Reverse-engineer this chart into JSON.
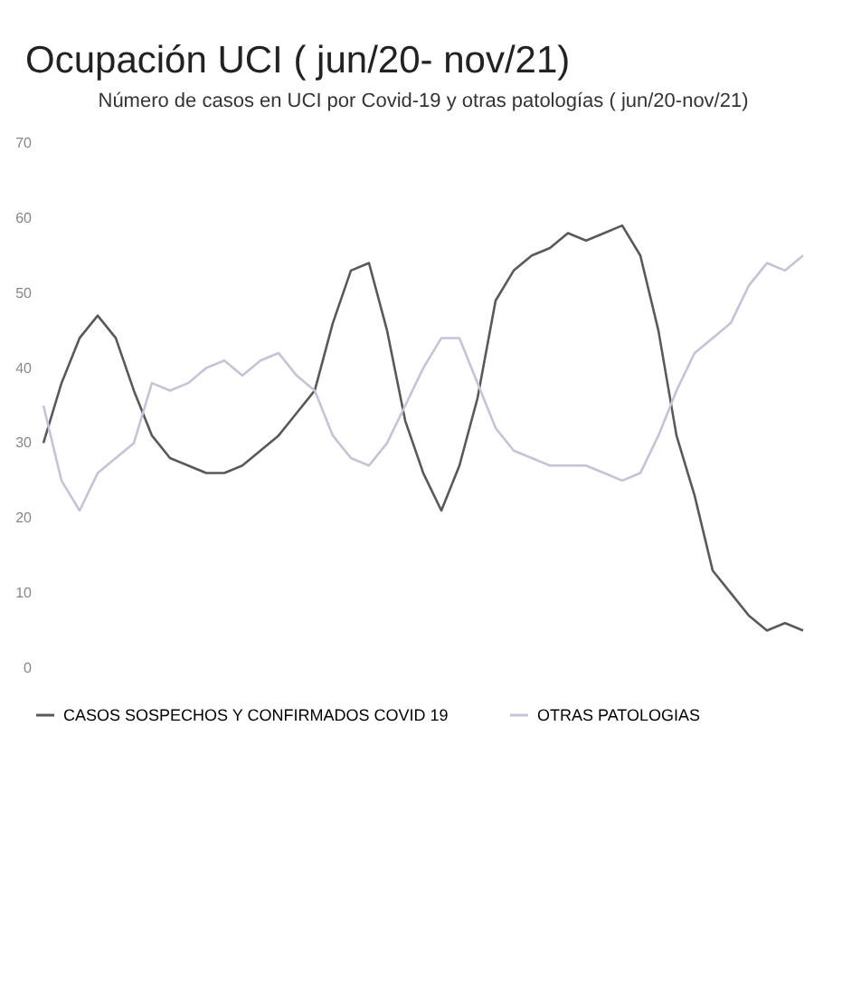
{
  "chart_data": {
    "type": "line",
    "title": "Ocupación UCI ( jun/20- nov/21)",
    "subtitle": "Número de casos en UCI por Covid-19 y otras patologías ( jun/20-nov/21)",
    "categories": [
      null,
      null,
      null,
      null,
      null,
      null,
      null,
      null,
      null,
      null,
      null,
      null,
      null,
      null,
      null,
      null,
      null,
      null,
      null,
      null,
      null,
      null,
      null,
      null,
      null,
      null,
      null,
      null,
      null,
      null,
      null,
      null,
      null,
      null,
      null,
      null,
      null,
      null,
      null,
      null,
      null,
      null,
      null
    ],
    "series": [
      {
        "name": "CASOS SOSPECHOS Y CONFIRMADOS COVID 19",
        "color": "#595959",
        "values": [
          30,
          38,
          44,
          47,
          44,
          37,
          31,
          28,
          27,
          26,
          26,
          27,
          29,
          31,
          34,
          37,
          46,
          53,
          54,
          45,
          33,
          26,
          21,
          27,
          36,
          49,
          53,
          55,
          56,
          58,
          57,
          58,
          59,
          55,
          45,
          31,
          23,
          13,
          10,
          7,
          5,
          6,
          5
        ]
      },
      {
        "name": "OTRAS PATOLOGIAS",
        "color": "#c4c4d6",
        "values": [
          35,
          25,
          21,
          26,
          28,
          30,
          38,
          37,
          38,
          40,
          41,
          39,
          41,
          42,
          39,
          37,
          31,
          28,
          27,
          30,
          35,
          40,
          44,
          44,
          38,
          32,
          29,
          28,
          27,
          27,
          27,
          26,
          25,
          26,
          31,
          37,
          42,
          44,
          46,
          51,
          54,
          53,
          55
        ]
      }
    ],
    "ylim": [
      0,
      70
    ],
    "yticks": [
      0,
      10,
      20,
      30,
      40,
      50,
      60,
      70
    ],
    "grid": false,
    "legend": "bottom"
  }
}
